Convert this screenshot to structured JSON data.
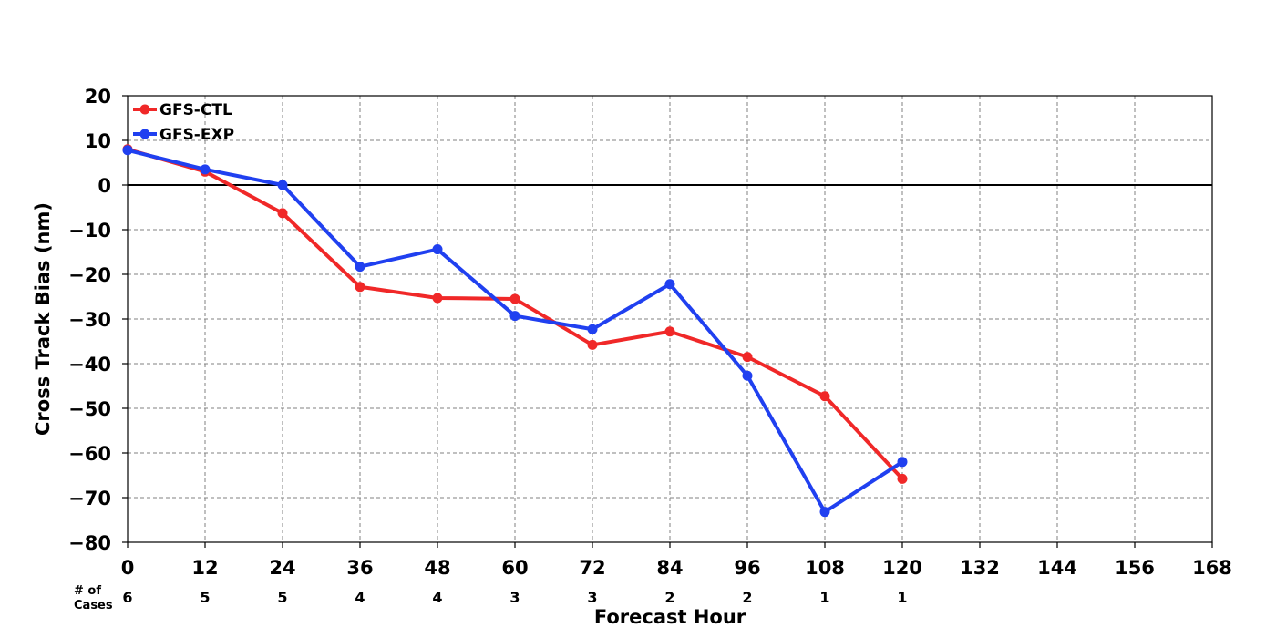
{
  "chart_data": {
    "type": "line",
    "title": "",
    "xlabel": "Forecast Hour",
    "ylabel": "Cross Track Bias (nm)",
    "xlim": [
      0,
      168
    ],
    "ylim": [
      -80,
      20
    ],
    "x_ticks": [
      0,
      12,
      24,
      36,
      48,
      60,
      72,
      84,
      96,
      108,
      120,
      132,
      144,
      156,
      168
    ],
    "y_ticks": [
      20,
      10,
      0,
      -10,
      -20,
      -30,
      -40,
      -50,
      -60,
      -70,
      -80
    ],
    "grid": true,
    "zero_line": true,
    "legend_position": "top-left",
    "series": [
      {
        "name": "GFS-CTL",
        "color": "#f02828",
        "x": [
          0,
          12,
          24,
          36,
          48,
          60,
          72,
          84,
          96,
          108,
          120
        ],
        "y": [
          8,
          3,
          -6.3,
          -22.8,
          -25.3,
          -25.5,
          -35.8,
          -32.8,
          -38.5,
          -47.3,
          -65.8
        ]
      },
      {
        "name": "GFS-EXP",
        "color": "#2040f0",
        "x": [
          0,
          12,
          24,
          36,
          48,
          60,
          72,
          84,
          96,
          108,
          120
        ],
        "y": [
          7.8,
          3.5,
          0,
          -18.3,
          -14.4,
          -29.3,
          -32.3,
          -22.2,
          -42.7,
          -73.2,
          -62
        ]
      }
    ],
    "cases": {
      "title_line1": "# of",
      "title_line2": "Cases",
      "x": [
        0,
        12,
        24,
        36,
        48,
        60,
        72,
        84,
        96,
        108,
        120
      ],
      "counts": [
        "6",
        "5",
        "5",
        "4",
        "4",
        "3",
        "3",
        "2",
        "2",
        "1",
        "1"
      ]
    }
  }
}
